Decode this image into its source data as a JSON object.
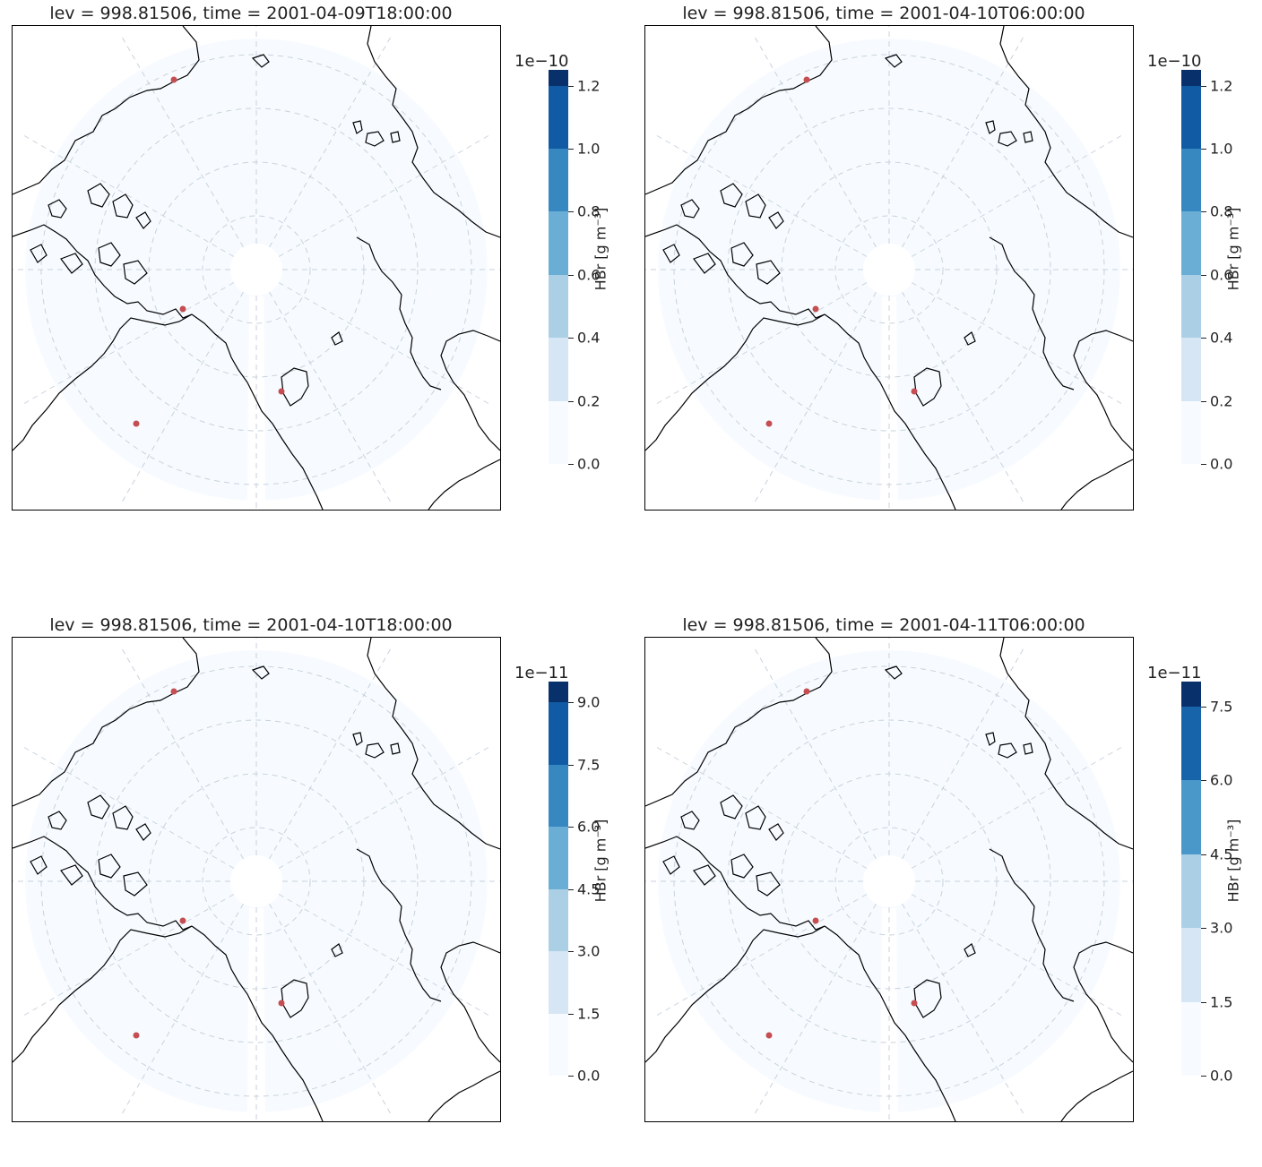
{
  "panels": [
    {
      "title": "lev = 998.81506, time = 2001-04-09T18:00:00",
      "colorbar": {
        "exponent": "1e−10",
        "label": "HBr [g m⁻³]",
        "ticks": [
          "0.0",
          "0.2",
          "0.4",
          "0.6",
          "0.8",
          "1.0",
          "1.2"
        ],
        "levels": [
          0.0,
          0.2,
          0.4,
          0.6,
          0.8,
          1.0,
          1.2,
          1.25
        ],
        "colors": [
          "#f7fbff",
          "#d6e6f4",
          "#abd0e6",
          "#6aaed6",
          "#3787c0",
          "#105ba4",
          "#08306b"
        ]
      }
    },
    {
      "title": "lev = 998.81506, time = 2001-04-10T06:00:00",
      "colorbar": {
        "exponent": "1e−10",
        "label": "HBr [g m⁻³]",
        "ticks": [
          "0.0",
          "0.2",
          "0.4",
          "0.6",
          "0.8",
          "1.0",
          "1.2"
        ],
        "levels": [
          0.0,
          0.2,
          0.4,
          0.6,
          0.8,
          1.0,
          1.2,
          1.25
        ],
        "colors": [
          "#f7fbff",
          "#d6e6f4",
          "#abd0e6",
          "#6aaed6",
          "#3787c0",
          "#105ba4",
          "#08306b"
        ]
      }
    },
    {
      "title": "lev = 998.81506, time = 2001-04-10T18:00:00",
      "colorbar": {
        "exponent": "1e−11",
        "label": "HBr [g m⁻³]",
        "ticks": [
          "0.0",
          "1.5",
          "3.0",
          "4.5",
          "6.0",
          "7.5",
          "9.0"
        ],
        "levels": [
          0.0,
          1.5,
          3.0,
          4.5,
          6.0,
          7.5,
          9.0,
          9.5
        ],
        "colors": [
          "#f7fbff",
          "#d6e6f4",
          "#abd0e6",
          "#6aaed6",
          "#3787c0",
          "#105ba4",
          "#08306b"
        ]
      }
    },
    {
      "title": "lev = 998.81506, time = 2001-04-11T06:00:00",
      "colorbar": {
        "exponent": "1e−11",
        "label": "HBr [g m⁻³]",
        "ticks": [
          "0.0",
          "1.5",
          "3.0",
          "4.5",
          "6.0",
          "7.5"
        ],
        "levels": [
          0.0,
          1.5,
          3.0,
          4.5,
          6.0,
          7.5,
          8.0
        ],
        "colors": [
          "#f7fbff",
          "#d6e6f4",
          "#abd0e6",
          "#4a98c9",
          "#1764ab",
          "#08306b"
        ]
      }
    }
  ]
}
